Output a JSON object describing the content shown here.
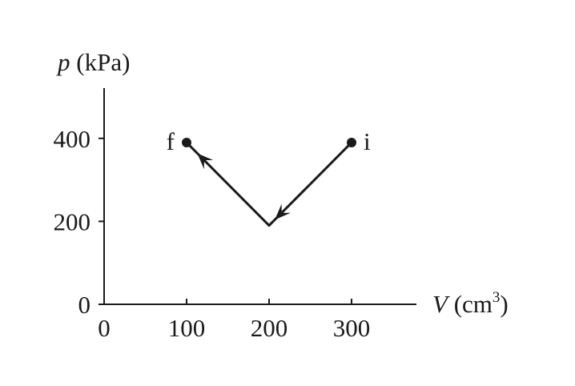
{
  "chart_data": {
    "type": "line",
    "title": "",
    "x_axis": {
      "symbol": "V",
      "unit_open": " (cm",
      "unit_sup": "3",
      "unit_close": ")",
      "range": [
        0,
        380
      ],
      "ticks": [
        "0",
        "100",
        "200",
        "300"
      ]
    },
    "y_axis": {
      "symbol": "p",
      "unit": " (kPa)",
      "range": [
        0,
        520
      ],
      "ticks": [
        "0",
        "200",
        "400"
      ]
    },
    "grid": false,
    "path": [
      {
        "x": 300,
        "y": 390,
        "label": "i"
      },
      {
        "x": 200,
        "y": 190
      },
      {
        "x": 100,
        "y": 390,
        "label": "f"
      }
    ],
    "arrows": "direction i → vertex → f",
    "colors": {
      "ink": "#1a1a1a"
    }
  }
}
